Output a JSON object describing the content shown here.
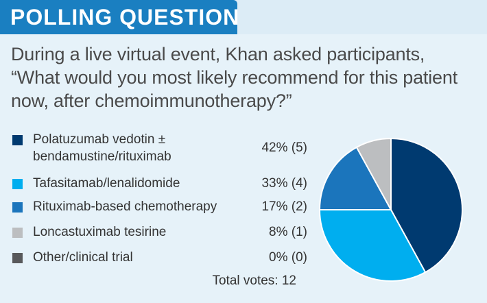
{
  "header": {
    "title": "POLLING QUESTION"
  },
  "question": "During a live virtual event, Khan asked participants, “What would you most likely recommend for this patient now, after chemoimmunotherapy?”",
  "chart_data": {
    "type": "pie",
    "slices": [
      {
        "label_line1": "Polatuzumab vedotin ±",
        "label_line2": "bendamustine/rituximab",
        "value": 42,
        "display": "42% (5)",
        "color": "#003a70"
      },
      {
        "label_line1": "Tafasitamab/lenalidomide",
        "label_line2": "",
        "value": 33,
        "display": "33% (4)",
        "color": "#00aeef"
      },
      {
        "label_line1": "Rituximab-based chemotherapy",
        "label_line2": "",
        "value": 17,
        "display": "17% (2)",
        "color": "#1b75bc"
      },
      {
        "label_line1": "Loncastuximab tesirine",
        "label_line2": "",
        "value": 8,
        "display": "8% (1)",
        "color": "#bcbec0"
      },
      {
        "label_line1": "Other/clinical trial",
        "label_line2": "",
        "value": 0,
        "display": "0% (0)",
        "color": "#58595b"
      }
    ],
    "total_label": "Total votes:",
    "total_value": "12",
    "start_angle": "12 o'clock",
    "direction": "clockwise"
  }
}
